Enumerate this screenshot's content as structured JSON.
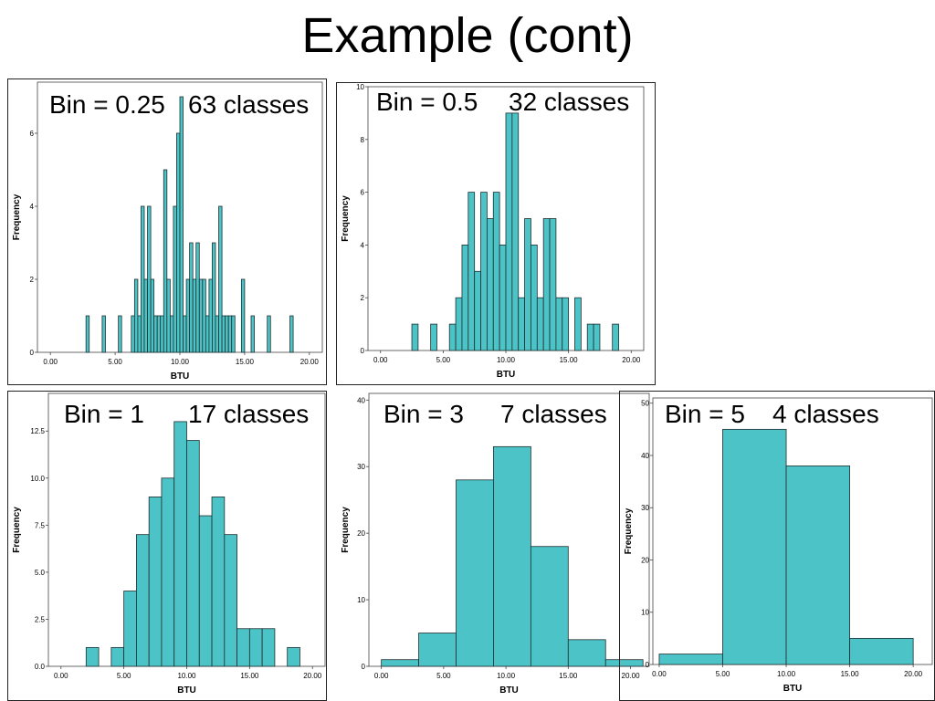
{
  "slide": {
    "title": "Example (cont)"
  },
  "chart_data": [
    {
      "type": "bar",
      "bin_label": "Bin = 0.25",
      "classes_label": "63 classes",
      "xlabel": "BTU",
      "ylabel": "Frequency",
      "xlim": [
        -1,
        21
      ],
      "ylim": [
        0,
        7.4
      ],
      "xticks": [
        "0.00",
        "5.00",
        "10.00",
        "15.00",
        "20.00"
      ],
      "xtick_values": [
        0,
        5,
        10,
        15,
        20
      ],
      "yticks": [
        "0",
        "2",
        "4",
        "6"
      ],
      "ytick_values": [
        0,
        2,
        4,
        6
      ],
      "bar_color": "#4cc3c6",
      "bin_width": 0.25,
      "bins": [
        [
          2.75,
          1
        ],
        [
          4.0,
          1
        ],
        [
          5.25,
          1
        ],
        [
          6.25,
          1
        ],
        [
          6.5,
          2
        ],
        [
          6.75,
          1
        ],
        [
          7.0,
          4
        ],
        [
          7.25,
          2
        ],
        [
          7.5,
          4
        ],
        [
          7.75,
          2
        ],
        [
          8.0,
          1
        ],
        [
          8.25,
          1
        ],
        [
          8.5,
          1
        ],
        [
          8.75,
          5
        ],
        [
          9.0,
          2
        ],
        [
          9.25,
          1
        ],
        [
          9.5,
          4
        ],
        [
          9.75,
          6
        ],
        [
          10.0,
          7
        ],
        [
          10.25,
          1
        ],
        [
          10.5,
          2
        ],
        [
          10.75,
          3
        ],
        [
          11.0,
          2
        ],
        [
          11.25,
          3
        ],
        [
          11.5,
          2
        ],
        [
          11.75,
          2
        ],
        [
          12.0,
          1
        ],
        [
          12.25,
          2
        ],
        [
          12.5,
          3
        ],
        [
          12.75,
          1
        ],
        [
          13.0,
          4
        ],
        [
          13.25,
          1
        ],
        [
          13.5,
          1
        ],
        [
          13.75,
          1
        ],
        [
          14.0,
          1
        ],
        [
          14.75,
          2
        ],
        [
          15.5,
          1
        ],
        [
          16.75,
          1
        ],
        [
          18.5,
          1
        ]
      ]
    },
    {
      "type": "bar",
      "bin_label": "Bin = 0.5",
      "classes_label": "32 classes",
      "xlabel": "BTU",
      "ylabel": "Frequency",
      "xlim": [
        -1,
        21
      ],
      "ylim": [
        0,
        10
      ],
      "xticks": [
        "0.00",
        "5.00",
        "10.00",
        "15.00",
        "20.00"
      ],
      "xtick_values": [
        0,
        5,
        10,
        15,
        20
      ],
      "yticks": [
        "0",
        "2",
        "4",
        "6",
        "8",
        "10"
      ],
      "ytick_values": [
        0,
        2,
        4,
        6,
        8,
        10
      ],
      "bar_color": "#4cc3c6",
      "bin_width": 0.5,
      "bins": [
        [
          2.5,
          1
        ],
        [
          4.0,
          1
        ],
        [
          5.5,
          1
        ],
        [
          6.0,
          2
        ],
        [
          6.5,
          4
        ],
        [
          7.0,
          6
        ],
        [
          7.5,
          3
        ],
        [
          8.0,
          6
        ],
        [
          8.5,
          5
        ],
        [
          9.0,
          6
        ],
        [
          9.5,
          4
        ],
        [
          10.0,
          9
        ],
        [
          10.5,
          9
        ],
        [
          11.0,
          2
        ],
        [
          11.5,
          5
        ],
        [
          12.0,
          4
        ],
        [
          12.5,
          2
        ],
        [
          13.0,
          5
        ],
        [
          13.5,
          5
        ],
        [
          14.0,
          2
        ],
        [
          14.5,
          2
        ],
        [
          15.5,
          2
        ],
        [
          16.5,
          1
        ],
        [
          17.0,
          1
        ],
        [
          18.5,
          1
        ]
      ]
    },
    {
      "type": "bar",
      "bin_label": "Bin = 1",
      "classes_label": "17 classes",
      "xlabel": "BTU",
      "ylabel": "Frequency",
      "xlim": [
        -1,
        21
      ],
      "ylim": [
        0,
        14.5
      ],
      "xticks": [
        "0.00",
        "5.00",
        "10.00",
        "15.00",
        "20.00"
      ],
      "xtick_values": [
        0,
        5,
        10,
        15,
        20
      ],
      "yticks": [
        "0.0",
        "2.5",
        "5.0",
        "7.5",
        "10.0",
        "12.5"
      ],
      "ytick_values": [
        0,
        2.5,
        5,
        7.5,
        10,
        12.5
      ],
      "bar_color": "#4cc3c6",
      "bin_width": 1,
      "bins": [
        [
          2,
          1
        ],
        [
          4,
          1
        ],
        [
          5,
          4
        ],
        [
          6,
          7
        ],
        [
          7,
          9
        ],
        [
          8,
          10
        ],
        [
          9,
          13
        ],
        [
          10,
          12
        ],
        [
          11,
          8
        ],
        [
          12,
          9
        ],
        [
          13,
          7
        ],
        [
          14,
          2
        ],
        [
          15,
          2
        ],
        [
          16,
          2
        ],
        [
          18,
          1
        ]
      ]
    },
    {
      "type": "bar",
      "bin_label": "Bin = 3",
      "classes_label": "7 classes",
      "xlabel": "BTU",
      "ylabel": "Frequency",
      "xlim": [
        -1,
        21.5
      ],
      "ylim": [
        0,
        41
      ],
      "xticks": [
        "0.00",
        "5.00",
        "10.00",
        "15.00",
        "20.00"
      ],
      "xtick_values": [
        0,
        5,
        10,
        15,
        20
      ],
      "yticks": [
        "0",
        "10",
        "20",
        "30",
        "40"
      ],
      "ytick_values": [
        0,
        10,
        20,
        30,
        40
      ],
      "bar_color": "#4cc3c6",
      "bin_width": 3,
      "bins": [
        [
          0,
          1
        ],
        [
          3,
          5
        ],
        [
          6,
          28
        ],
        [
          9,
          33
        ],
        [
          12,
          18
        ],
        [
          15,
          4
        ],
        [
          18,
          1
        ]
      ]
    },
    {
      "type": "bar",
      "bin_label": "Bin = 5",
      "classes_label": "4 classes",
      "xlabel": "BTU",
      "ylabel": "Frequency",
      "xlim": [
        -0.5,
        21.5
      ],
      "ylim": [
        0,
        51
      ],
      "xticks": [
        "0.00",
        "5.00",
        "10.00",
        "15.00",
        "20.00"
      ],
      "xtick_values": [
        0,
        5,
        10,
        15,
        20
      ],
      "yticks": [
        "0",
        "10",
        "20",
        "30",
        "40",
        "50"
      ],
      "ytick_values": [
        0,
        10,
        20,
        30,
        40,
        50
      ],
      "bar_color": "#4cc3c6",
      "bin_width": 5,
      "bins": [
        [
          0,
          2
        ],
        [
          5,
          45
        ],
        [
          10,
          38
        ],
        [
          15,
          5
        ]
      ]
    }
  ]
}
